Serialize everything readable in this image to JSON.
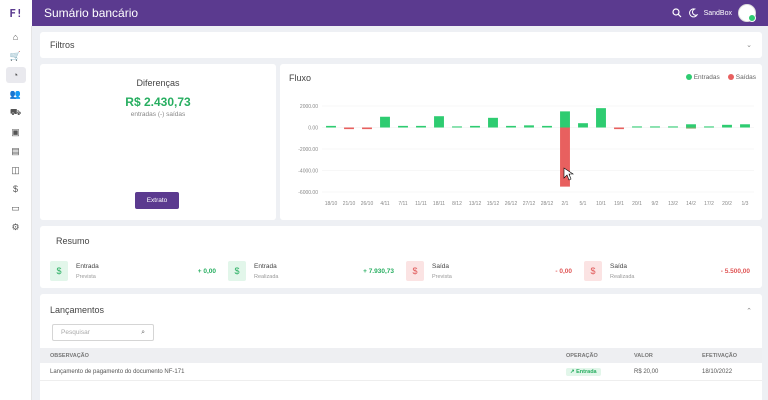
{
  "app": {
    "logo_text": "F!",
    "title": "Sumário bancário",
    "env_label": "SandBox"
  },
  "sidebar": {
    "icons": [
      "home-icon",
      "cart-icon",
      "chart-icon",
      "users-icon",
      "truck-icon",
      "box-icon",
      "document-icon",
      "bag-icon",
      "dollar-icon",
      "file-icon",
      "gear-icon"
    ]
  },
  "filters": {
    "title": "Filtros"
  },
  "differences": {
    "title": "Diferenças",
    "value": "R$ 2.430,73",
    "subtitle": "entradas (-) saídas",
    "button": "Extrato",
    "accent": "#27ae60"
  },
  "chart_data": {
    "type": "bar",
    "title": "Fluxo",
    "legend": [
      {
        "name": "Entradas",
        "color": "#2ecc71"
      },
      {
        "name": "Saídas",
        "color": "#e8605f"
      }
    ],
    "legend_position": "top-right",
    "ylim": [
      -8000,
      2000
    ],
    "yticks": [
      "2000.00",
      "0.00",
      "-2000.00",
      "-4000.00",
      "-6000.00"
    ],
    "categories": [
      "18/10",
      "21/10",
      "26/10",
      "4/11",
      "7/11",
      "11/11",
      "18/11",
      "8/12",
      "13/12",
      "15/12",
      "26/12",
      "27/12",
      "28/12",
      "2/1",
      "5/1",
      "10/1",
      "19/1",
      "20/1",
      "9/2",
      "13/2",
      "14/2",
      "17/2",
      "20/2",
      "1/3"
    ],
    "series": [
      {
        "name": "Entradas",
        "color": "#2ecc71",
        "values": [
          150,
          0,
          0,
          1000,
          150,
          150,
          1050,
          100,
          150,
          900,
          150,
          200,
          150,
          1500,
          400,
          1800,
          0,
          100,
          100,
          100,
          300,
          100,
          250,
          300
        ]
      },
      {
        "name": "Saídas",
        "color": "#e8605f",
        "values": [
          0,
          -150,
          -150,
          0,
          0,
          0,
          0,
          0,
          0,
          0,
          0,
          0,
          0,
          -5500,
          0,
          0,
          -150,
          0,
          0,
          0,
          -100,
          0,
          0,
          0
        ]
      }
    ]
  },
  "summary": {
    "title": "Resumo",
    "items": [
      {
        "label": "Entrada",
        "sub": "Prevista",
        "value": "+ 0,00",
        "icon": "dollar-icon",
        "color": "#27ae60",
        "bg": "#e2f6ea"
      },
      {
        "label": "Entrada",
        "sub": "Realizada",
        "value": "+ 7.930,73",
        "icon": "dollar-icon",
        "color": "#27ae60",
        "bg": "#e2f6ea"
      },
      {
        "label": "Saída",
        "sub": "Prevista",
        "value": "- 0,00",
        "icon": "dollar-icon",
        "color": "#e05656",
        "bg": "#fbe3e3"
      },
      {
        "label": "Saída",
        "sub": "Realizada",
        "value": "- 5.500,00",
        "icon": "dollar-icon",
        "color": "#e05656",
        "bg": "#fbe3e3"
      }
    ]
  },
  "entries": {
    "title": "Lançamentos",
    "search_placeholder": "Pesquisar",
    "columns": [
      "OBSERVAÇÃO",
      "OPERAÇÃO",
      "VALOR",
      "EFETIVAÇÃO"
    ],
    "rows": [
      {
        "obs": "Lançamento de pagamento do documento NF-171",
        "op": "Entrada",
        "value": "R$ 20,00",
        "date": "18/10/2022"
      }
    ]
  }
}
